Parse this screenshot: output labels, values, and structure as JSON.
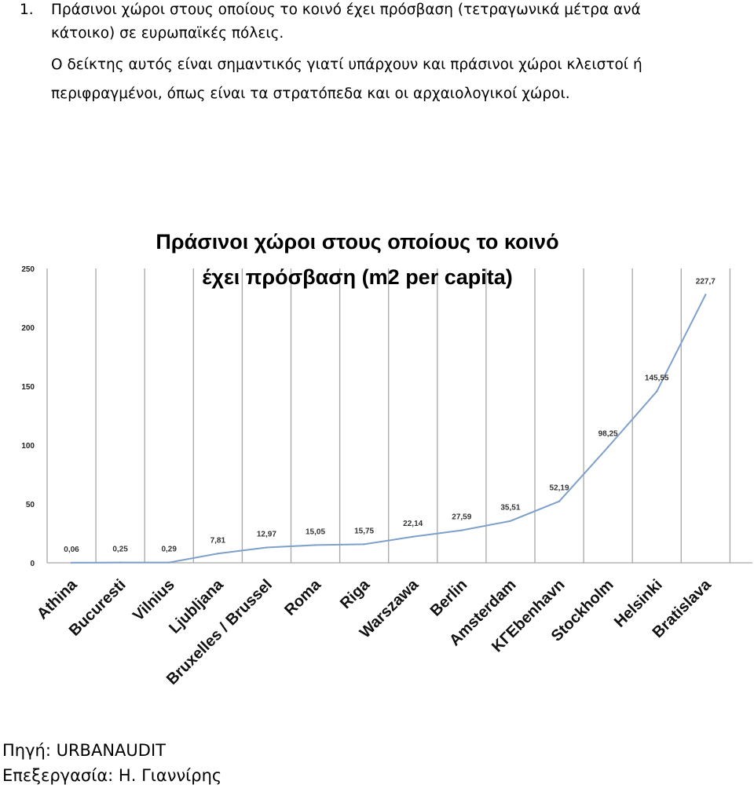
{
  "intro": {
    "number": "1.",
    "lines": [
      "Πράσινοι χώροι στους οποίους το κοινό έχει πρόσβαση (τετραγωνικά μέτρα ανά",
      "κάτοικο) σε ευρωπαϊκές πόλεις.",
      "Ο δείκτης αυτός είναι σημαντικός γιατί υπάρχουν και πράσινοι χώροι κλειστοί ή",
      "περιφραγμένοι, όπως είναι τα στρατόπεδα και οι αρχαιολογικοί χώροι."
    ]
  },
  "chart_data": {
    "type": "line",
    "title_lines": [
      "Πράσινοι χώροι στους οποίους το κοινό",
      "έχει πρόσβαση (m2 per capita)"
    ],
    "categories": [
      "Athina",
      "Bucuresti",
      "Vilnius",
      "Ljubljana",
      "Bruxelles / Brussel",
      "Roma",
      "Riga",
      "Warszawa",
      "Berlin",
      "Amsterdam",
      "KГEbenhavn",
      "Stockholm",
      "Helsinki",
      "Bratislava"
    ],
    "values": [
      0.06,
      0.25,
      0.29,
      7.81,
      12.97,
      15.05,
      15.75,
      22.14,
      27.59,
      35.51,
      52.19,
      98.25,
      145.55,
      227.7
    ],
    "data_labels": [
      "0,06",
      "0,25",
      "0,29",
      "7,81",
      "12,97",
      "15,05",
      "15,75",
      "22,14",
      "27,59",
      "35,51",
      "52,19",
      "98,25",
      "145,55",
      "227,7"
    ],
    "yticks": [
      "0",
      "50",
      "100",
      "150",
      "200",
      "250"
    ],
    "ylim": [
      0,
      250
    ],
    "grid": "vertical",
    "line_color": "#7DA0CB",
    "grid_color": "#A6A6A6"
  },
  "credits": {
    "source": "Πηγή: URBANAUDIT",
    "processing": "Επεξεργασία: Η. Γιαννίρης"
  }
}
